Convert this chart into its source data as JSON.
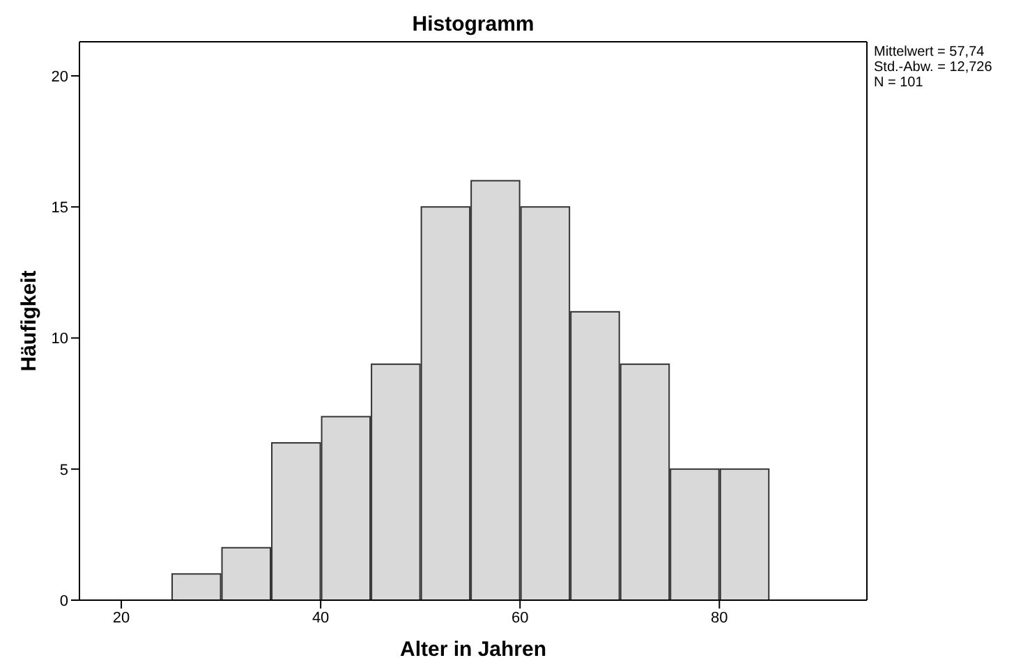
{
  "chart_data": {
    "type": "histogram",
    "title": "Histogramm",
    "xlabel": "Alter in Jahren",
    "ylabel": "Häufigkeit",
    "bins": [
      25,
      30,
      35,
      40,
      45,
      50,
      55,
      60,
      65,
      70,
      75,
      80,
      85
    ],
    "values": [
      1,
      2,
      6,
      7,
      9,
      15,
      16,
      15,
      11,
      9,
      5,
      5
    ],
    "color": "#d9d9d9",
    "xlim": [
      15.8,
      94.8
    ],
    "xticks": [
      20,
      40,
      60,
      80
    ],
    "ylim": [
      0,
      21.3
    ],
    "yticks": [
      0,
      5,
      10,
      15,
      20
    ],
    "annotations": [
      "Mittelwert = 57,74",
      "Std.-Abw. = 12,726",
      "N = 101"
    ]
  }
}
